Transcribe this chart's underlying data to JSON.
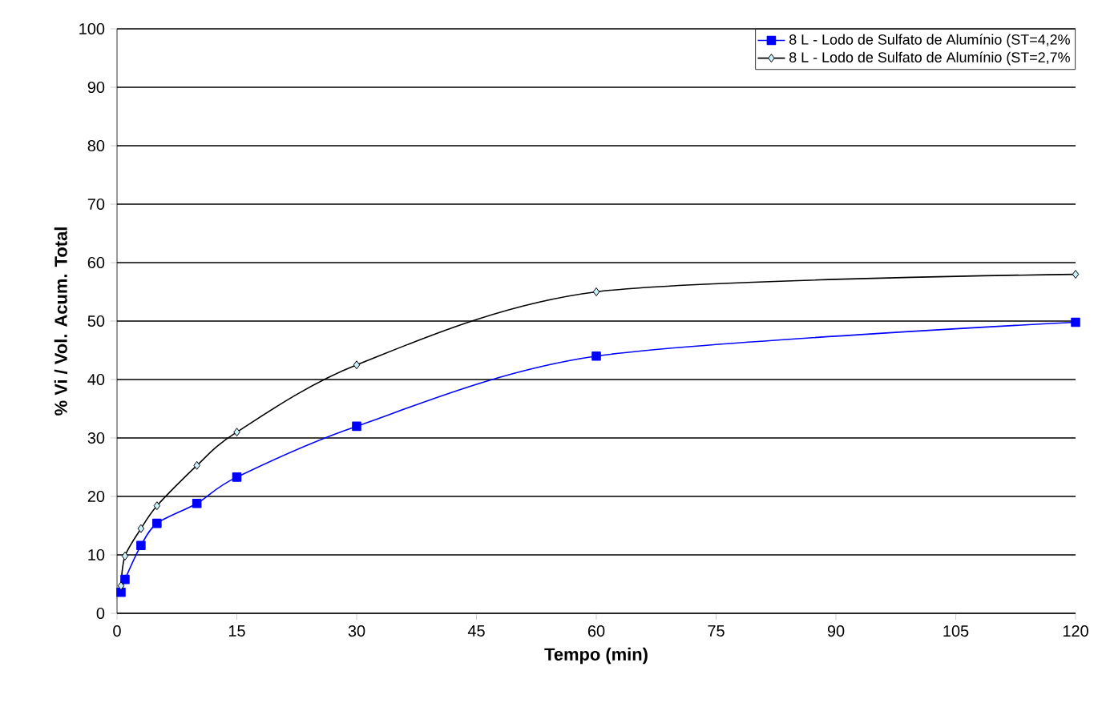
{
  "chart_data": {
    "type": "line",
    "xlabel": "Tempo (min)",
    "ylabel": "% Vi / Vol. Acum. Total",
    "x": [
      0.5,
      1,
      3,
      5,
      10,
      15,
      30,
      60,
      120
    ],
    "series": [
      {
        "name": "8 L - Lodo de Sulfato de Alumínio (ST=4,2%",
        "color": "#0000ff",
        "marker": "square",
        "values": [
          3.6,
          5.8,
          11.6,
          15.4,
          18.8,
          23.3,
          32,
          44,
          49.8
        ]
      },
      {
        "name": "8 L - Lodo de Sulfato de Alumínio (ST=2,7%",
        "color": "#000000",
        "marker": "diamond",
        "values": [
          4.7,
          9.8,
          14.5,
          18.4,
          25.3,
          31,
          42.5,
          55,
          58
        ]
      }
    ],
    "xlim": [
      0,
      120
    ],
    "ylim": [
      0,
      100
    ],
    "xticks": [
      0,
      15,
      30,
      45,
      60,
      75,
      90,
      105,
      120
    ],
    "yticks": [
      0,
      10,
      20,
      30,
      40,
      50,
      60,
      70,
      80,
      90,
      100
    ],
    "grid": "y",
    "legend": "top right"
  }
}
